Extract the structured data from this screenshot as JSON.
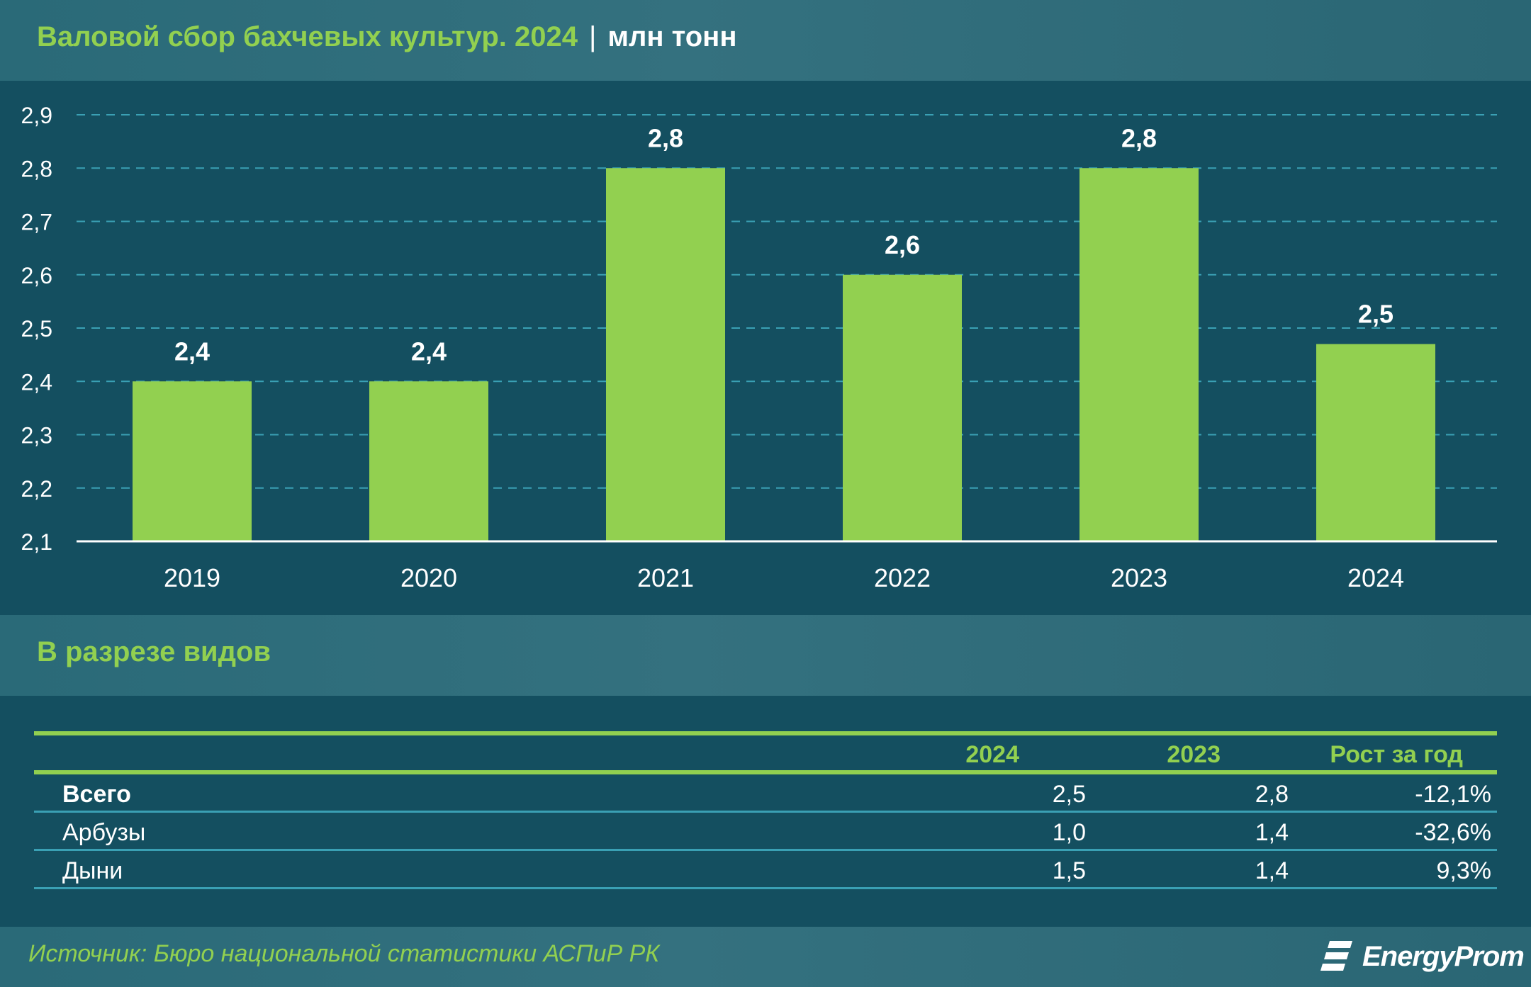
{
  "header": {
    "title": "Валовой сбор бахчевых культур. 2024",
    "separator": "|",
    "unit": "млн тонн"
  },
  "colors": {
    "background": "#144f60",
    "band": "#34717f",
    "accent_green": "#92d050",
    "bar": "#92d050",
    "gridline": "#3aa0b4",
    "text": "#ffffff"
  },
  "chart_data": {
    "type": "bar",
    "categories": [
      "2019",
      "2020",
      "2021",
      "2022",
      "2023",
      "2024"
    ],
    "values": [
      2.4,
      2.4,
      2.8,
      2.6,
      2.8,
      2.47
    ],
    "value_labels": [
      "2,4",
      "2,4",
      "2,8",
      "2,6",
      "2,8",
      "2,5"
    ],
    "ylim": [
      2.1,
      2.9
    ],
    "yticks": [
      2.1,
      2.2,
      2.3,
      2.4,
      2.5,
      2.6,
      2.7,
      2.8,
      2.9
    ],
    "ytick_labels": [
      "2,1",
      "2,2",
      "2,3",
      "2,4",
      "2,5",
      "2,6",
      "2,7",
      "2,8",
      "2,9"
    ],
    "grid": "dashed horizontal",
    "title": "Валовой сбор бахчевых культур. 2024",
    "xlabel": "",
    "ylabel": "млн тонн"
  },
  "section": {
    "title": "В разрезе видов"
  },
  "table": {
    "columns": [
      "2024",
      "2023",
      "Рост за год"
    ],
    "rows": [
      {
        "name": "Всего",
        "v2024": "2,5",
        "v2023": "2,8",
        "growth": "-12,1%"
      },
      {
        "name": "Арбузы",
        "v2024": "1,0",
        "v2023": "1,4",
        "growth": "-32,6%"
      },
      {
        "name": "Дыни",
        "v2024": "1,5",
        "v2023": "1,4",
        "growth": "9,3%"
      }
    ]
  },
  "footer": {
    "source": "Источник: Бюро национальной статистики АСПиР РК",
    "brand": "EnergyProm"
  }
}
